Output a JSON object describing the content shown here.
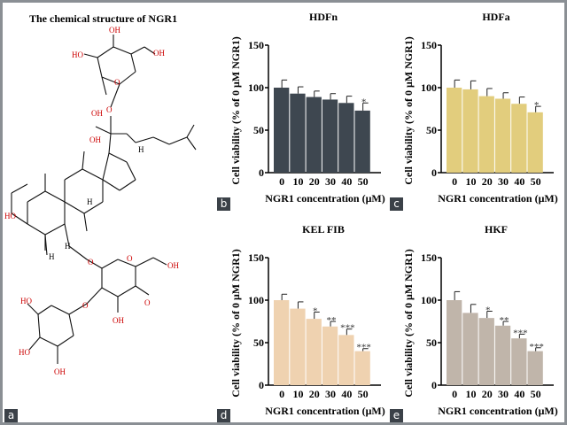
{
  "panel_a": {
    "title": "The chemical structure of NGR1",
    "letter": "a",
    "atom_labels": [
      "OH",
      "HO",
      "OH",
      "OH",
      "O",
      "O",
      "OH",
      "H",
      "H",
      "HO",
      "H",
      "H",
      "O",
      "O",
      "OH",
      "OH",
      "O",
      "HO",
      "O",
      "HO",
      "OH"
    ]
  },
  "colors": {
    "HDFn": "#3e4750",
    "HDFa": "#e2cd7d",
    "KEL FIB": "#efd2b0",
    "HKF": "#c0b5aa"
  },
  "chart_data": [
    {
      "type": "bar",
      "letter": "b",
      "title": "HDFn",
      "xlabel": "NGR1 concentration (μM)",
      "ylabel": "Cell viability (% of 0 μM NGR1)",
      "ylim": [
        0,
        150
      ],
      "yticks": [
        "0",
        "50",
        "100",
        "150"
      ],
      "categories": [
        "0",
        "10",
        "20",
        "30",
        "40",
        "50"
      ],
      "values": [
        100,
        93,
        89,
        86,
        82,
        73
      ],
      "errors": [
        9,
        8,
        7,
        7,
        8,
        9
      ],
      "significance": [
        "",
        "",
        "",
        "",
        "",
        "*"
      ],
      "color": "#3e4750",
      "grid": false
    },
    {
      "type": "bar",
      "letter": "c",
      "title": "HDFa",
      "xlabel": "NGR1 concentration (μM)",
      "ylabel": "Cell viability (% of 0 μM NGR1)",
      "ylim": [
        0,
        150
      ],
      "yticks": [
        "0",
        "50",
        "100",
        "150"
      ],
      "categories": [
        "0",
        "10",
        "20",
        "30",
        "40",
        "50"
      ],
      "values": [
        100,
        98,
        90,
        87,
        81,
        71
      ],
      "errors": [
        9,
        10,
        9,
        7,
        8,
        7
      ],
      "significance": [
        "",
        "",
        "",
        "",
        "",
        "*"
      ],
      "color": "#e2cd7d",
      "grid": false
    },
    {
      "type": "bar",
      "letter": "d",
      "title": "KEL FIB",
      "xlabel": "NGR1 concentration (μM)",
      "ylabel": "Cell viability (% of 0 μM NGR1)",
      "ylim": [
        0,
        150
      ],
      "yticks": [
        "0",
        "50",
        "100",
        "150"
      ],
      "categories": [
        "0",
        "10",
        "20",
        "30",
        "40",
        "50"
      ],
      "values": [
        100,
        90,
        78,
        69,
        59,
        40
      ],
      "errors": [
        7,
        8,
        8,
        6,
        7,
        3
      ],
      "significance": [
        "",
        "",
        "*",
        "**",
        "***",
        "***"
      ],
      "color": "#efd2b0",
      "grid": false
    },
    {
      "type": "bar",
      "letter": "e",
      "title": "HKF",
      "xlabel": "NGR1 concentration (μM)",
      "ylabel": "Cell viability (% of 0 μM NGR1)",
      "ylim": [
        0,
        150
      ],
      "yticks": [
        "0",
        "50",
        "100",
        "150"
      ],
      "categories": [
        "0",
        "10",
        "20",
        "30",
        "40",
        "50"
      ],
      "values": [
        100,
        85,
        79,
        70,
        55,
        40
      ],
      "errors": [
        10,
        10,
        8,
        5,
        5,
        4
      ],
      "significance": [
        "",
        "",
        "*",
        "**",
        "***",
        "***"
      ],
      "color": "#c0b5aa",
      "grid": false
    }
  ]
}
